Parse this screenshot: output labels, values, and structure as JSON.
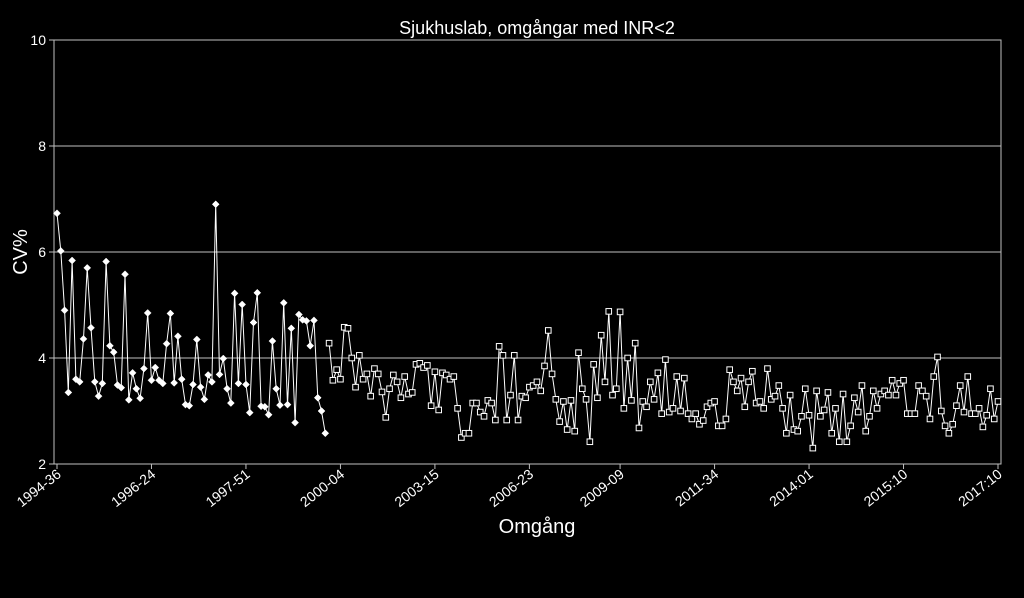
{
  "chart_data": {
    "type": "line",
    "title": "Sjukhuslab, omgångar med INR<2",
    "xlabel": "Omgång",
    "ylabel": "CV%",
    "ylim": [
      2,
      10
    ],
    "yticks": [
      2,
      4,
      6,
      8,
      10
    ],
    "grid": true,
    "x_tick_labels": [
      "1994-36",
      "1996-24",
      "1997-51",
      "2000-04",
      "2003-15",
      "2006-23",
      "2009-09",
      "2011-34",
      "2014:01",
      "2015:10",
      "2017:10"
    ],
    "series": [
      {
        "marker": "diamond-filled",
        "values": [
          6.73,
          6.02,
          4.9,
          3.35,
          5.84,
          3.6,
          3.55,
          4.36,
          5.7,
          4.57,
          3.55,
          3.28,
          3.52,
          5.82,
          4.23,
          4.11,
          3.49,
          3.44,
          5.58,
          3.21,
          3.72,
          3.42,
          3.24,
          3.8,
          4.85,
          3.58,
          3.82,
          3.58,
          3.52,
          4.27,
          4.84,
          3.53,
          4.41,
          3.6,
          3.12,
          3.1,
          3.5,
          4.35,
          3.45,
          3.22,
          3.68,
          3.55,
          6.9,
          3.69,
          3.99,
          3.42,
          3.15,
          5.22,
          3.52,
          5.01,
          3.5,
          2.97,
          4.67,
          5.23,
          3.09,
          3.08,
          2.93,
          4.32,
          3.42,
          3.11,
          5.04,
          3.12,
          4.56,
          2.78,
          4.82,
          4.72,
          4.7,
          4.23,
          4.71,
          3.25,
          3.0,
          2.58
        ]
      },
      {
        "marker": "square-open",
        "values": [
          4.28,
          3.58,
          3.78,
          3.6,
          4.58,
          4.56,
          4.0,
          3.45,
          4.05,
          3.6,
          3.7,
          3.28,
          3.8,
          3.7,
          3.36,
          2.88,
          3.42,
          3.68,
          3.55,
          3.25,
          3.65,
          3.32,
          3.35,
          3.88,
          3.9,
          3.82,
          3.86,
          3.1,
          3.74,
          3.02,
          3.72,
          3.68,
          3.6,
          3.65,
          3.05,
          2.5,
          2.58,
          2.58,
          3.15,
          3.15,
          2.98,
          2.9,
          3.2,
          3.15,
          2.83,
          4.22,
          4.05,
          2.83,
          3.3,
          4.05,
          2.83,
          3.28,
          3.25,
          3.45,
          3.48,
          3.55,
          3.38,
          3.85,
          4.52,
          3.7,
          3.22,
          2.8,
          3.18,
          2.65,
          3.2,
          2.62,
          4.1,
          3.42,
          3.22,
          2.42,
          3.88,
          3.25,
          4.43,
          3.55,
          4.88,
          3.3,
          3.42,
          4.87,
          3.05,
          4.0,
          3.2,
          4.28,
          2.68,
          3.18,
          3.08,
          3.55,
          3.22,
          3.72,
          2.95,
          3.97,
          2.98,
          3.05,
          3.65,
          3.0,
          3.62,
          2.95,
          2.85,
          2.95,
          2.75,
          2.82,
          3.08,
          3.15,
          3.18,
          2.72,
          2.72,
          2.85,
          3.78,
          3.55,
          3.38,
          3.62,
          3.08,
          3.55,
          3.75,
          3.15,
          3.18,
          3.05,
          3.8,
          3.22,
          3.28,
          3.48,
          3.05,
          2.58,
          3.3,
          2.65,
          2.62,
          2.9,
          3.42,
          2.92,
          2.3,
          3.38,
          2.9,
          3.02,
          3.35,
          2.58,
          3.05,
          2.42,
          3.32,
          2.42,
          2.72,
          3.25,
          2.98,
          3.48,
          2.62,
          2.9,
          3.38,
          3.05,
          3.32,
          3.38,
          3.3,
          3.58,
          3.3,
          3.52,
          3.58,
          2.95,
          2.95,
          2.95,
          3.48,
          3.38,
          3.28,
          2.85,
          3.65,
          4.02,
          3.0,
          2.72,
          2.58,
          2.75,
          3.1,
          3.48,
          2.98,
          3.65,
          2.95,
          2.95,
          3.05,
          2.7,
          2.92,
          3.42,
          2.85,
          3.18
        ]
      }
    ]
  }
}
